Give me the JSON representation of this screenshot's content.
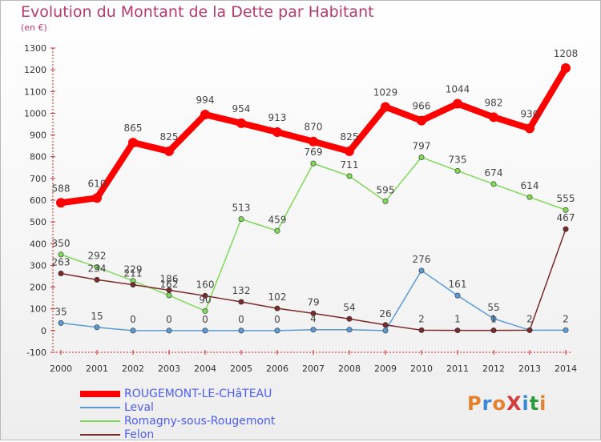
{
  "header": {
    "title": "Evolution du Montant de la Dette par Habitant",
    "subtitle": "(en €)"
  },
  "logo": {
    "text": "ProXiti",
    "colors": [
      "#e5812d",
      "#3a88d8",
      "#e5812d",
      "#d43b3b",
      "#3a88d8",
      "#2a9c3a",
      "#e5812d"
    ]
  },
  "chart_data": {
    "type": "line",
    "title": "Evolution du Montant de la Dette par Habitant",
    "subtitle": "(en €)",
    "x": [
      "2000",
      "2001",
      "2002",
      "2003",
      "2004",
      "2005",
      "2006",
      "2007",
      "2008",
      "2009",
      "2010",
      "2011",
      "2012",
      "2013",
      "2014"
    ],
    "ylim": [
      -100,
      1300
    ],
    "yticks": [
      -100,
      0,
      100,
      200,
      300,
      400,
      500,
      600,
      700,
      800,
      900,
      1000,
      1100,
      1200,
      1300
    ],
    "grid": false,
    "legend_position": "bottom-left",
    "series": [
      {
        "name": "ROUGEMONT-LE-CHâTEAU",
        "color": "#ff0000",
        "emphasis": true,
        "values": [
          588,
          610,
          865,
          825,
          994,
          954,
          913,
          870,
          825,
          1029,
          966,
          1044,
          982,
          930,
          1208
        ],
        "labels": [
          "588",
          "610",
          "865",
          "825",
          "994",
          "954",
          "913",
          "870",
          "825",
          "1029",
          "966",
          "1044",
          "982",
          "930",
          "1208"
        ]
      },
      {
        "name": "Leval",
        "color": "#5b9bd5",
        "values": [
          35,
          15,
          0,
          0,
          0,
          0,
          0,
          4,
          4,
          0,
          276,
          161,
          55,
          2,
          2
        ],
        "labels": [
          "35",
          "15",
          "0",
          "0",
          "0",
          "0",
          "0",
          "4",
          "",
          "",
          "276",
          "161",
          "55",
          "2",
          "2"
        ]
      },
      {
        "name": "Romagny-sous-Rougemont",
        "color": "#7ed957",
        "values": [
          350,
          292,
          229,
          162,
          90,
          513,
          459,
          769,
          711,
          595,
          797,
          735,
          674,
          614,
          555
        ],
        "labels": [
          "350",
          "292",
          "229",
          "162",
          "90",
          "513",
          "459",
          "769",
          "711",
          "595",
          "797",
          "735",
          "674",
          "614",
          "555"
        ]
      },
      {
        "name": "Felon",
        "color": "#7a2a2a",
        "values": [
          263,
          234,
          211,
          186,
          160,
          132,
          102,
          79,
          54,
          26,
          2,
          1,
          1,
          2,
          467
        ],
        "labels": [
          "263",
          "234",
          "211",
          "186",
          "160",
          "132",
          "102",
          "79",
          "54",
          "26",
          "2",
          "1",
          "1",
          "",
          "467"
        ]
      }
    ]
  }
}
